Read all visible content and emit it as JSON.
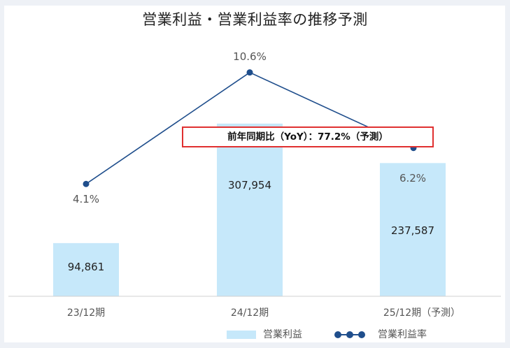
{
  "chart_data": {
    "type": "bar",
    "title": "営業利益・営業利益率の推移予測",
    "categories": [
      "23/12期",
      "24/12期",
      "25/12期（予測）"
    ],
    "series": [
      {
        "name": "営業利益",
        "type": "bar",
        "values": [
          94861,
          307954,
          237587
        ],
        "labels": [
          "94,861",
          "307,954",
          "237,587"
        ],
        "color": "#c6e8fa"
      },
      {
        "name": "営業利益率",
        "type": "line",
        "values": [
          4.1,
          10.6,
          6.2
        ],
        "labels": [
          "4.1%",
          "10.6%",
          "6.2%"
        ],
        "color": "#1f4e8c"
      }
    ],
    "annotation": "前年同期比（YoY）：77.2%（予測）",
    "grid": false,
    "legend": "bottom"
  }
}
